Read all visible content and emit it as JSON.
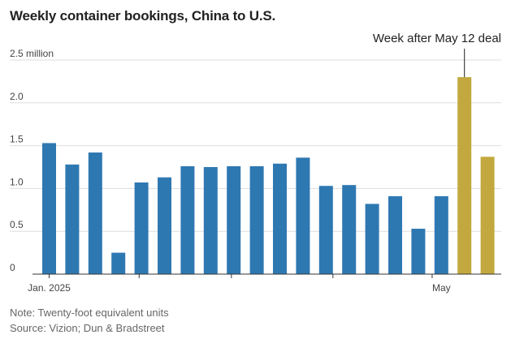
{
  "title": "Weekly container bookings, China to U.S.",
  "notes": {
    "note": "Note: Twenty-foot equivalent units",
    "source": "Source: Vizion; Dun & Bradstreet"
  },
  "colors": {
    "before": "#2e78b2",
    "after": "#c2a83e",
    "grid": "#dddddd",
    "axis": "#333333"
  },
  "chart_data": {
    "type": "bar",
    "title": "Weekly container bookings, China to U.S.",
    "ylabel": "",
    "ylim": [
      0,
      2.5
    ],
    "y_ticks": [
      {
        "value": 0,
        "label": "0"
      },
      {
        "value": 0.5,
        "label": "0.5"
      },
      {
        "value": 1.0,
        "label": "1.0"
      },
      {
        "value": 1.5,
        "label": "1.5"
      },
      {
        "value": 2.0,
        "label": "2.0"
      },
      {
        "value": 2.5,
        "label": "2.5 million"
      }
    ],
    "x_labels": [
      {
        "index": 0,
        "label": "Jan. 2025"
      },
      {
        "index": 17,
        "label": "May"
      }
    ],
    "values": [
      1.53,
      1.28,
      1.42,
      0.25,
      1.07,
      1.13,
      1.26,
      1.25,
      1.26,
      1.26,
      1.29,
      1.36,
      1.03,
      1.04,
      0.82,
      0.91,
      0.53,
      0.91,
      2.3,
      1.37
    ],
    "highlight_from_index": 18,
    "annotation": {
      "text": "Week after May 12 deal",
      "index": 18
    }
  }
}
